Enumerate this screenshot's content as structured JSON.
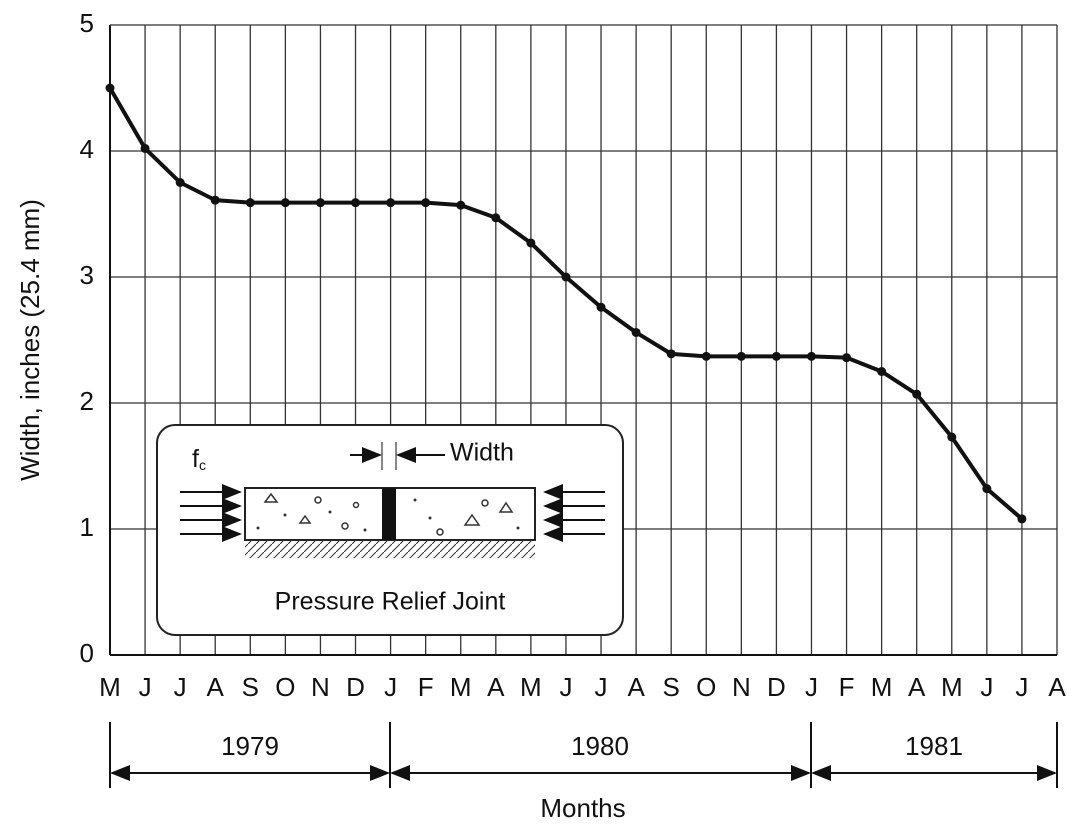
{
  "chart_data": {
    "type": "line",
    "x_label": "Months",
    "y_label": "Width, inches (25.4 mm)",
    "categories": [
      "M",
      "J",
      "J",
      "A",
      "S",
      "O",
      "N",
      "D",
      "J",
      "F",
      "M",
      "A",
      "M",
      "J",
      "J",
      "A",
      "S",
      "O",
      "N",
      "D",
      "J",
      "F",
      "M",
      "A",
      "M",
      "J",
      "J",
      "A"
    ],
    "series": [
      {
        "name": "Width",
        "color": "#111111",
        "values": [
          4.5,
          4.02,
          3.75,
          3.61,
          3.59,
          3.59,
          3.59,
          3.59,
          3.59,
          3.59,
          3.57,
          3.47,
          3.27,
          3.0,
          2.76,
          2.56,
          2.39,
          2.37,
          2.37,
          2.37,
          2.37,
          2.36,
          2.25,
          2.07,
          1.73,
          1.32,
          1.08,
          null
        ]
      }
    ],
    "ylim": [
      0,
      5
    ],
    "yticks": [
      0,
      1,
      2,
      3,
      4,
      5
    ],
    "grid": true,
    "years": [
      "1979",
      "1980",
      "1981"
    ],
    "inset": {
      "force": "f",
      "force_sub": "c",
      "width": "Width",
      "caption": "Pressure Relief Joint"
    }
  }
}
